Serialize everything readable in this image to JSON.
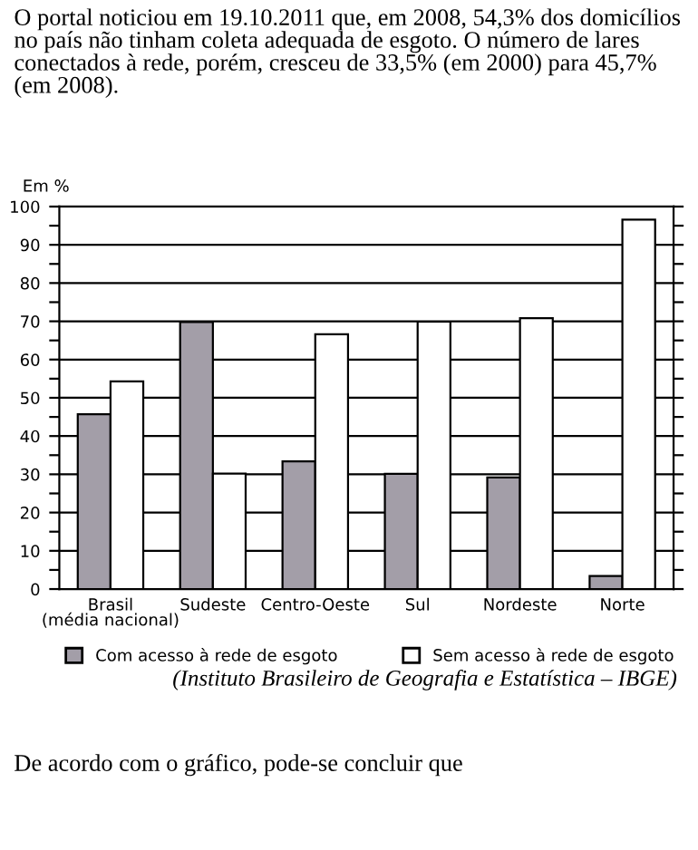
{
  "chart_data": {
    "type": "bar",
    "title": "O portal noticiou em 19.10.2011 que, em 2008, 54,3% dos domicílios no país não tinham coleta adequada de esgoto. O número de lares conectados à rede, porém, cresceu de 33,5% (em 2000) para 45,7% (em 2008).",
    "ylabel": "Em %",
    "categories": [
      "Brasil\n(média nacional)",
      "Sudeste",
      "Centro-Oeste",
      "Sul",
      "Nordeste",
      "Norte"
    ],
    "series": [
      {
        "name": "Com acesso à rede de esgoto",
        "color": "#a39ea8",
        "values": [
          45.7,
          69.8,
          33.4,
          30.1,
          29.2,
          3.4
        ]
      },
      {
        "name": "Sem acesso à rede de esgoto",
        "color": "#ffffff",
        "values": [
          54.3,
          30.2,
          66.6,
          69.9,
          70.8,
          96.6
        ]
      }
    ],
    "ylim": [
      0,
      100
    ],
    "yticks": [
      0,
      {
        "value": 5,
        "label": null
      },
      10,
      {
        "value": 15,
        "label": null
      },
      20,
      {
        "value": 25,
        "label": null
      },
      30,
      {
        "value": 35,
        "label": null
      },
      40,
      {
        "value": 45,
        "label": null
      },
      50,
      {
        "value": 55,
        "label": null
      },
      60,
      {
        "value": 65,
        "label": null
      },
      70,
      {
        "value": 75,
        "label": null
      },
      80,
      {
        "value": 85,
        "label": null
      },
      90,
      {
        "value": 95,
        "label": null
      },
      100
    ],
    "grid": "y",
    "legend": "bottom",
    "annotations": [
      "(Instituto Brasileiro de Geografia e Estatística – IBGE)",
      "De acordo com o gráfico, pode-se concluir que"
    ]
  }
}
